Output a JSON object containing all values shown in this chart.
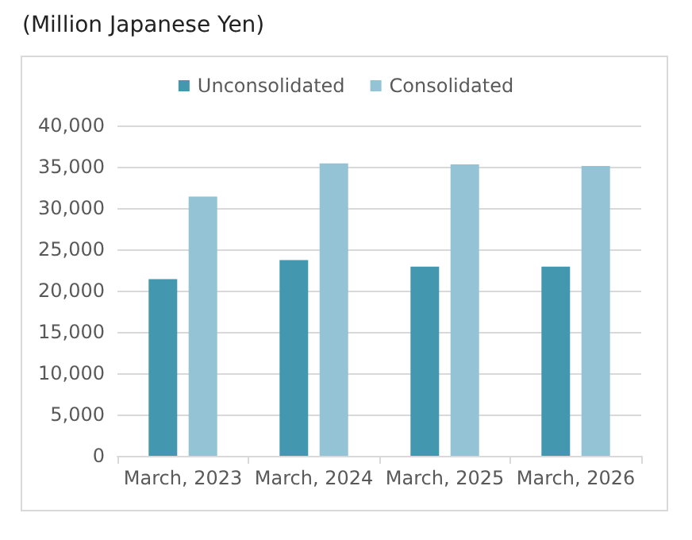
{
  "chart_data": {
    "type": "bar",
    "title": "(Million Japanese Yen)",
    "categories": [
      "March, 2023",
      "March, 2024",
      "March, 2025",
      "March, 2026"
    ],
    "series": [
      {
        "name": "Unconsolidated",
        "color": "#4398b0",
        "values": [
          21400,
          23700,
          22900,
          22900
        ]
      },
      {
        "name": "Consolidated",
        "color": "#93c3d4",
        "values": [
          31400,
          35400,
          35300,
          35100
        ]
      }
    ],
    "ylim": [
      0,
      40000
    ],
    "yticks": [
      0,
      {
        "value": 5000,
        "label": "5,000"
      },
      {
        "value": 10000,
        "label": "10,000"
      },
      {
        "value": 15000,
        "label": "15,000"
      },
      {
        "value": 20000,
        "label": "20,000"
      },
      {
        "value": 25000,
        "label": "25,000"
      },
      {
        "value": 30000,
        "label": "30,000"
      },
      {
        "value": 35000,
        "label": "35,000"
      },
      {
        "value": 40000,
        "label": "40,000"
      }
    ],
    "grid": "y",
    "legend": "top"
  }
}
